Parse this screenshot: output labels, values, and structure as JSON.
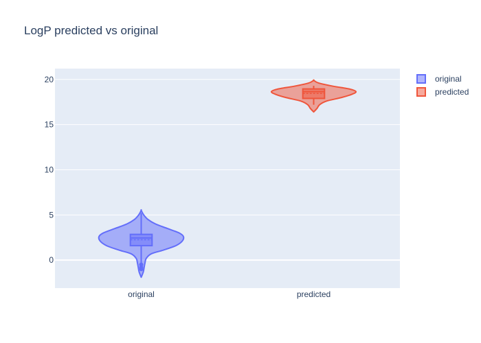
{
  "chart_data": {
    "type": "violin",
    "title": "LogP predicted vs original",
    "xlabel": "",
    "ylabel": "",
    "categories": [
      "original",
      "predicted"
    ],
    "ylim": [
      -3.1,
      21.2
    ],
    "yticks": [
      0,
      5,
      10,
      15,
      20
    ],
    "grid": true,
    "legend_position": "top-right",
    "colors": {
      "plot_bg": "#e5ecf6",
      "grid": "#ffffff",
      "text": "#2a3f5f"
    },
    "series": [
      {
        "name": "original",
        "category": "original",
        "color": "#636efa",
        "fill": "#636efa",
        "min": -1.2,
        "q1": 1.6,
        "median": 2.45,
        "mean": 2.25,
        "q3": 2.85,
        "max": 5.2,
        "span": [
          -1.9,
          5.5
        ],
        "outliers": [
          -0.5,
          -0.8,
          -1.0
        ],
        "density": [
          [
            -1.9,
            0.0
          ],
          [
            -1.3,
            0.05
          ],
          [
            -0.8,
            0.07
          ],
          [
            -0.3,
            0.09
          ],
          [
            0.2,
            0.12
          ],
          [
            0.7,
            0.24
          ],
          [
            1.1,
            0.52
          ],
          [
            1.6,
            0.82
          ],
          [
            2.1,
            0.97
          ],
          [
            2.6,
            1.0
          ],
          [
            3.0,
            0.9
          ],
          [
            3.5,
            0.62
          ],
          [
            4.0,
            0.34
          ],
          [
            4.5,
            0.16
          ],
          [
            5.0,
            0.06
          ],
          [
            5.5,
            0.0
          ]
        ]
      },
      {
        "name": "predicted",
        "category": "predicted",
        "color": "#ef553b",
        "fill": "#ef553b",
        "min": 17.2,
        "q1": 17.9,
        "median": 18.65,
        "mean": 18.45,
        "q3": 18.95,
        "max": 19.3,
        "span": [
          16.4,
          19.9
        ],
        "outliers": [],
        "density": [
          [
            16.4,
            0.0
          ],
          [
            16.8,
            0.08
          ],
          [
            17.2,
            0.14
          ],
          [
            17.6,
            0.3
          ],
          [
            18.0,
            0.66
          ],
          [
            18.35,
            0.9
          ],
          [
            18.65,
            1.0
          ],
          [
            18.95,
            0.84
          ],
          [
            19.25,
            0.46
          ],
          [
            19.6,
            0.12
          ],
          [
            19.9,
            0.0
          ]
        ]
      }
    ]
  }
}
